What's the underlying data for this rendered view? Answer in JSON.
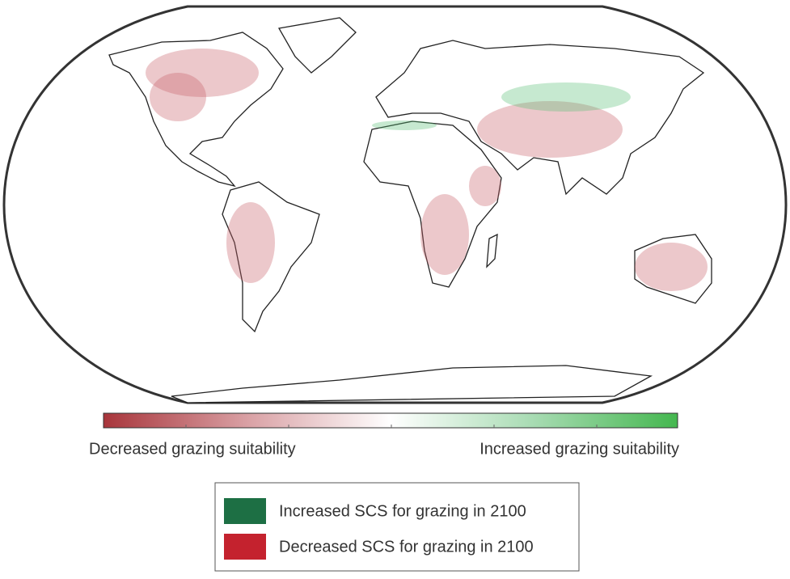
{
  "colorbar": {
    "left_label": "Decreased grazing suitability",
    "right_label": "Increased grazing suitability",
    "colors": [
      "#a8353b",
      "#d9a0a4",
      "#ffffff",
      "#a7dbb2",
      "#44b74f"
    ]
  },
  "legend": {
    "items": [
      {
        "label": "Increased SCS for grazing in 2100",
        "color": "#1d6f44"
      },
      {
        "label": "Decreased SCS for grazing in 2100",
        "color": "#c4222e"
      }
    ]
  }
}
